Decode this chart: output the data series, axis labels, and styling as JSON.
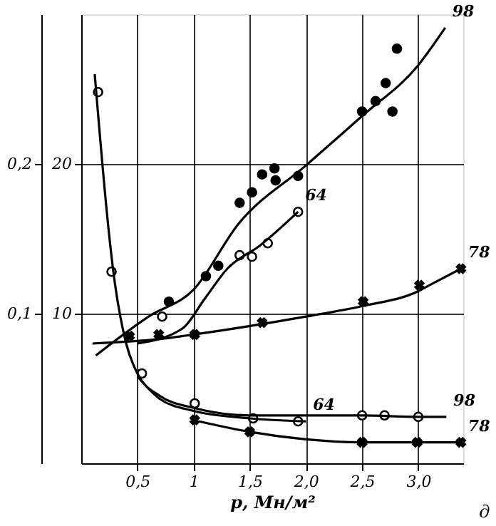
{
  "chart_data": {
    "type": "scatter",
    "xlabel": "p, Мн/м²",
    "xlim": [
      0,
      3.4
    ],
    "xticks": [
      {
        "value": 0.5,
        "label": "0,5"
      },
      1,
      {
        "value": 1.5,
        "label": "1,5"
      },
      {
        "value": 2,
        "label": "2,0"
      },
      {
        "value": 2.5,
        "label": "2,5"
      },
      {
        "value": 3,
        "label": "3,0"
      }
    ],
    "ylim": [
      0,
      30
    ],
    "yticks": [
      10,
      20
    ],
    "y2lim": [
      0,
      0.3
    ],
    "y2ticks": [
      {
        "value": 0.1,
        "label": "0,1"
      },
      {
        "value": 0.2,
        "label": "0,2"
      }
    ],
    "grid": true,
    "legend": false,
    "series": [
      {
        "marker": "circle",
        "color": "#000000",
        "x": [
          0.78,
          1.11,
          1.22,
          1.41,
          1.52,
          1.61,
          1.72,
          1.73,
          1.93,
          2.5,
          2.62,
          2.71,
          2.77,
          2.81
        ],
        "values": [
          10.8,
          12.5,
          13.2,
          17.4,
          18.1,
          19.3,
          19.7,
          18.9,
          19.2,
          23.5,
          24.2,
          25.4,
          23.5,
          27.7
        ]
      },
      {
        "type": "line",
        "name": "98",
        "color": "#000000",
        "x": [
          0.13,
          0.6,
          1.0,
          1.4,
          2.0,
          2.5,
          3.0,
          3.24
        ],
        "values": [
          7.2,
          9.8,
          11.6,
          16.0,
          19.9,
          23.2,
          26.6,
          29.1
        ]
      },
      {
        "marker": "circle",
        "color": "#ffffff",
        "x": [
          0.72,
          1.41,
          1.52,
          1.66,
          1.93
        ],
        "values": [
          9.8,
          13.9,
          13.8,
          14.7,
          16.8
        ]
      },
      {
        "type": "line",
        "name": "64",
        "color": "#000000",
        "x": [
          0.5,
          0.9,
          1.1,
          1.3,
          1.6,
          1.93
        ],
        "values": [
          8.0,
          9.0,
          11.0,
          13.0,
          14.6,
          16.8
        ]
      },
      {
        "marker": "cross",
        "color": "#000000",
        "x": [
          0.43,
          0.69,
          1.01,
          1.61,
          2.51,
          3.01,
          3.38
        ],
        "values": [
          8.5,
          8.6,
          8.6,
          9.4,
          10.8,
          11.9,
          13.0
        ]
      },
      {
        "type": "line",
        "name": "78",
        "color": "#000000",
        "x": [
          0.1,
          0.7,
          1.0,
          2.0,
          2.5,
          3.0,
          3.1,
          3.38
        ],
        "values": [
          8.0,
          8.3,
          8.6,
          9.8,
          10.5,
          11.5,
          11.9,
          13.0
        ]
      },
      {
        "axis": "y2",
        "marker": "circle",
        "color": "#ffffff",
        "x": [
          0.15,
          0.27,
          0.54,
          1.01,
          1.53,
          1.93,
          2.5,
          2.7,
          3.0
        ],
        "values": [
          0.248,
          0.128,
          0.06,
          0.04,
          0.03,
          0.028,
          0.032,
          0.032,
          0.031
        ]
      },
      {
        "type": "line",
        "axis": "y2",
        "name": "98",
        "color": "#000000",
        "x": [
          0.12,
          0.3,
          0.4,
          0.5,
          0.7,
          1.0,
          1.5,
          2.0,
          2.5,
          3.0,
          3.25
        ],
        "values": [
          0.26,
          0.12,
          0.08,
          0.06,
          0.045,
          0.037,
          0.032,
          0.032,
          0.032,
          0.031,
          0.031
        ]
      },
      {
        "type": "line",
        "axis": "y2",
        "name": "64",
        "color": "#000000",
        "x": [
          0.5,
          0.7,
          1.0,
          1.5,
          2.0
        ],
        "values": [
          0.058,
          0.043,
          0.035,
          0.03,
          0.028
        ]
      },
      {
        "axis": "y2",
        "marker": "cross",
        "color": "#000000",
        "x": [
          1.01,
          1.5,
          2.5,
          2.99,
          3.38
        ],
        "values": [
          0.029,
          0.021,
          0.014,
          0.014,
          0.014
        ]
      },
      {
        "type": "line",
        "axis": "y2",
        "name": "78",
        "color": "#000000",
        "x": [
          1.05,
          1.5,
          2.0,
          2.5,
          3.0,
          3.38
        ],
        "values": [
          0.028,
          0.021,
          0.016,
          0.014,
          0.014,
          0.014
        ]
      }
    ],
    "annotations": [
      "д"
    ]
  }
}
